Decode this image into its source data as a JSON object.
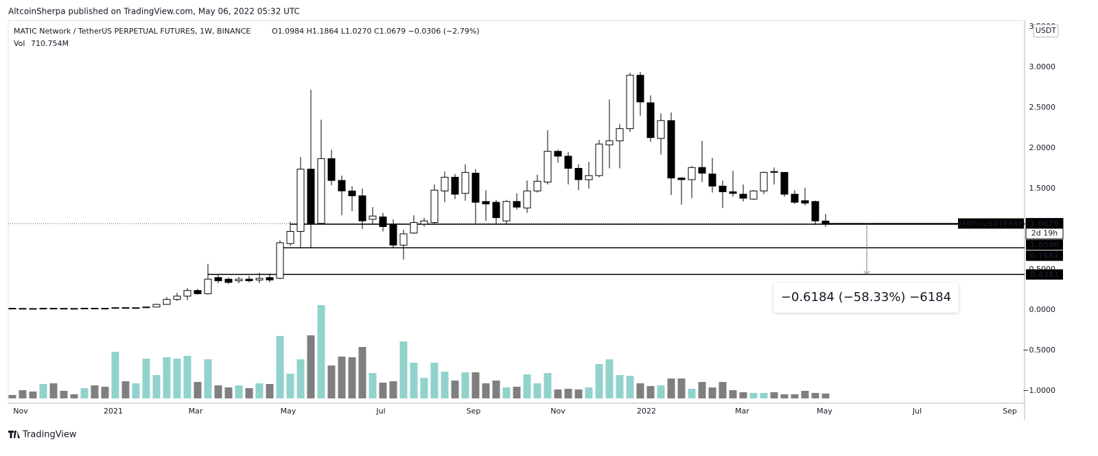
{
  "header": "AltcoinSherpa published on TradingView.com, May 06, 2022 05:32 UTC",
  "footer": "TradingView",
  "chart_data": {
    "type": "candlestick",
    "title": "MATIC Network / TetherUS PERPETUAL FUTURES, 1W, BINANCE",
    "ohlc_legend": "O1.0984 H1.1864 L1.0270 C1.0679 −0.0306 (−2.79%)",
    "volume_name": "Vol",
    "volume_legend": "710.754M",
    "y_unit": "USDT",
    "x": [
      0,
      1,
      2,
      3,
      4,
      5,
      6,
      7,
      8,
      9,
      10,
      11,
      12,
      13,
      14,
      15,
      16,
      17,
      18,
      19,
      20,
      21,
      22,
      23,
      24,
      25,
      26,
      27,
      28,
      29,
      30,
      31,
      32,
      33,
      34,
      35,
      36,
      37,
      38,
      39,
      40,
      41,
      42,
      43,
      44,
      45,
      46,
      47,
      48,
      49,
      50,
      51,
      52,
      53,
      54,
      55,
      56,
      57,
      58,
      59,
      60,
      61,
      62,
      63,
      64,
      65,
      66,
      67,
      68,
      69,
      70,
      71,
      72,
      73,
      74,
      75,
      76,
      77,
      78,
      79
    ],
    "open": [
      0.02,
      0.018,
      0.017,
      0.016,
      0.02,
      0.019,
      0.018,
      0.017,
      0.021,
      0.02,
      0.019,
      0.028,
      0.026,
      0.027,
      0.036,
      0.068,
      0.13,
      0.17,
      0.24,
      0.2,
      0.4,
      0.38,
      0.36,
      0.38,
      0.37,
      0.4,
      0.39,
      0.82,
      0.97,
      1.74,
      1.07,
      1.87,
      1.6,
      1.47,
      1.41,
      1.12,
      1.15,
      1.05,
      0.8,
      0.95,
      1.06,
      1.08,
      1.47,
      1.64,
      1.44,
      1.69,
      1.34,
      1.33,
      1.1,
      1.34,
      1.26,
      1.47,
      1.58,
      1.96,
      1.9,
      1.75,
      1.61,
      1.66,
      2.04,
      2.09,
      2.24,
      2.9,
      2.56,
      2.12,
      2.34,
      1.63,
      1.61,
      1.76,
      1.68,
      1.53,
      1.46,
      1.43,
      1.37,
      1.47,
      1.71,
      1.7,
      1.43,
      1.35,
      1.34,
      1.0984
    ],
    "high": [
      0.022,
      0.02,
      0.019,
      0.021,
      0.024,
      0.021,
      0.02,
      0.023,
      0.024,
      0.023,
      0.032,
      0.03,
      0.03,
      0.04,
      0.075,
      0.16,
      0.21,
      0.27,
      0.26,
      0.57,
      0.43,
      0.4,
      0.41,
      0.42,
      0.46,
      0.45,
      0.86,
      1.09,
      1.89,
      2.72,
      2.35,
      1.98,
      1.66,
      1.53,
      1.5,
      1.27,
      1.2,
      1.12,
      0.99,
      1.17,
      1.14,
      1.55,
      1.71,
      1.68,
      1.8,
      1.74,
      1.48,
      1.36,
      1.36,
      1.44,
      1.6,
      1.67,
      2.22,
      1.98,
      1.95,
      1.8,
      1.83,
      2.1,
      2.6,
      2.3,
      2.93,
      2.94,
      2.65,
      2.43,
      2.44,
      1.64,
      1.78,
      2.09,
      1.88,
      1.6,
      1.72,
      1.55,
      1.48,
      1.71,
      1.76,
      1.7,
      1.48,
      1.51,
      1.35,
      1.1864
    ],
    "low": [
      0.017,
      0.016,
      0.015,
      0.015,
      0.018,
      0.017,
      0.016,
      0.016,
      0.018,
      0.018,
      0.018,
      0.022,
      0.024,
      0.025,
      0.034,
      0.065,
      0.11,
      0.12,
      0.19,
      0.19,
      0.33,
      0.32,
      0.33,
      0.34,
      0.33,
      0.34,
      0.38,
      0.79,
      0.76,
      0.77,
      1.07,
      1.54,
      1.17,
      1.22,
      1.0,
      1.06,
      0.97,
      0.77,
      0.62,
      0.94,
      1.03,
      1.06,
      1.33,
      1.37,
      1.35,
      1.07,
      1.1,
      1.05,
      1.06,
      1.24,
      1.2,
      1.45,
      1.55,
      1.82,
      1.55,
      1.48,
      1.5,
      1.64,
      1.75,
      1.75,
      2.2,
      2.4,
      2.08,
      1.92,
      1.42,
      1.3,
      1.38,
      1.58,
      1.45,
      1.26,
      1.4,
      1.34,
      1.36,
      1.43,
      1.55,
      1.4,
      1.31,
      1.29,
      1.05,
      1.027
    ],
    "close": [
      0.018,
      0.017,
      0.016,
      0.02,
      0.019,
      0.018,
      0.017,
      0.021,
      0.02,
      0.019,
      0.028,
      0.026,
      0.027,
      0.036,
      0.068,
      0.13,
      0.17,
      0.24,
      0.2,
      0.38,
      0.36,
      0.34,
      0.38,
      0.36,
      0.39,
      0.37,
      0.83,
      0.97,
      1.74,
      1.07,
      1.87,
      1.6,
      1.47,
      1.41,
      1.1,
      1.16,
      1.03,
      0.8,
      0.94,
      1.08,
      1.1,
      1.48,
      1.64,
      1.43,
      1.7,
      1.33,
      1.31,
      1.14,
      1.34,
      1.27,
      1.47,
      1.59,
      1.96,
      1.9,
      1.75,
      1.61,
      1.66,
      2.05,
      2.09,
      2.24,
      2.9,
      2.57,
      2.13,
      2.34,
      1.63,
      1.61,
      1.76,
      1.69,
      1.53,
      1.46,
      1.44,
      1.38,
      1.47,
      1.7,
      1.7,
      1.43,
      1.33,
      1.32,
      1.1,
      1.0679
    ],
    "volume": [
      500,
      1200,
      1000,
      2100,
      2200,
      1100,
      600,
      1500,
      1900,
      1700,
      6800,
      2500,
      2200,
      5800,
      3400,
      6000,
      5800,
      6200,
      2400,
      5700,
      1900,
      1600,
      1900,
      1500,
      2200,
      2100,
      9100,
      3600,
      5700,
      9200,
      13600,
      4800,
      6100,
      6000,
      7500,
      3700,
      2300,
      2500,
      8300,
      5200,
      3000,
      5200,
      3900,
      2600,
      3800,
      3800,
      2200,
      2600,
      1600,
      1700,
      3500,
      2200,
      3700,
      1300,
      1400,
      1300,
      1600,
      5000,
      5700,
      3400,
      3300,
      2200,
      1800,
      1900,
      2900,
      2900,
      1400,
      2400,
      1600,
      2400,
      1200,
      900,
      800,
      800,
      900,
      600,
      600,
      1100,
      800,
      710.754
    ],
    "up_color": "#ffffff",
    "down_color": "#000000",
    "volume_up_color": "#91d3cc",
    "volume_down_color": "#7f7f7f",
    "xlim": [
      -0.4,
      98.33
    ],
    "ylim": [
      -1.153,
      3.576
    ],
    "vlim": [
      0,
      14000
    ],
    "yticks": [
      {
        "value": 3.5,
        "label": "3.5000"
      },
      {
        "value": 3,
        "label": "3.0000"
      },
      {
        "value": 2.5,
        "label": "2.5000"
      },
      {
        "value": 2,
        "label": "2.0000"
      },
      {
        "value": 1.5,
        "label": "1.5000"
      },
      {
        "value": 0.5,
        "label": "0.5000"
      },
      {
        "value": 0,
        "label": "0.0000"
      },
      {
        "value": -0.5,
        "label": "−0.5000"
      },
      {
        "value": -1,
        "label": "−1.0000"
      }
    ],
    "xticks": [
      {
        "value": 0.8,
        "label": "Nov"
      },
      {
        "value": 9.8,
        "label": "2021"
      },
      {
        "value": 17.8,
        "label": "Mar"
      },
      {
        "value": 26.8,
        "label": "May"
      },
      {
        "value": 35.8,
        "label": "Jul"
      },
      {
        "value": 44.8,
        "label": "Sep"
      },
      {
        "value": 53,
        "label": "Nov"
      },
      {
        "value": 61.6,
        "label": "2022"
      },
      {
        "value": 70.9,
        "label": "Mar"
      },
      {
        "value": 78.9,
        "label": "May"
      },
      {
        "value": 87.9,
        "label": "Jul"
      },
      {
        "value": 96.9,
        "label": "Sep"
      }
    ],
    "price_tag": {
      "symbol": "MATICUSDTPERP",
      "price": "1.0679",
      "countdown": "2d 19h"
    },
    "levels": [
      {
        "value": 1.059,
        "label": "1.0590"
      },
      {
        "value": 0.7681,
        "label": "0.7681"
      },
      {
        "value": 0.4381,
        "label": "0.4381"
      }
    ],
    "measure": "−0.6184 (−58.33%) −6184"
  }
}
